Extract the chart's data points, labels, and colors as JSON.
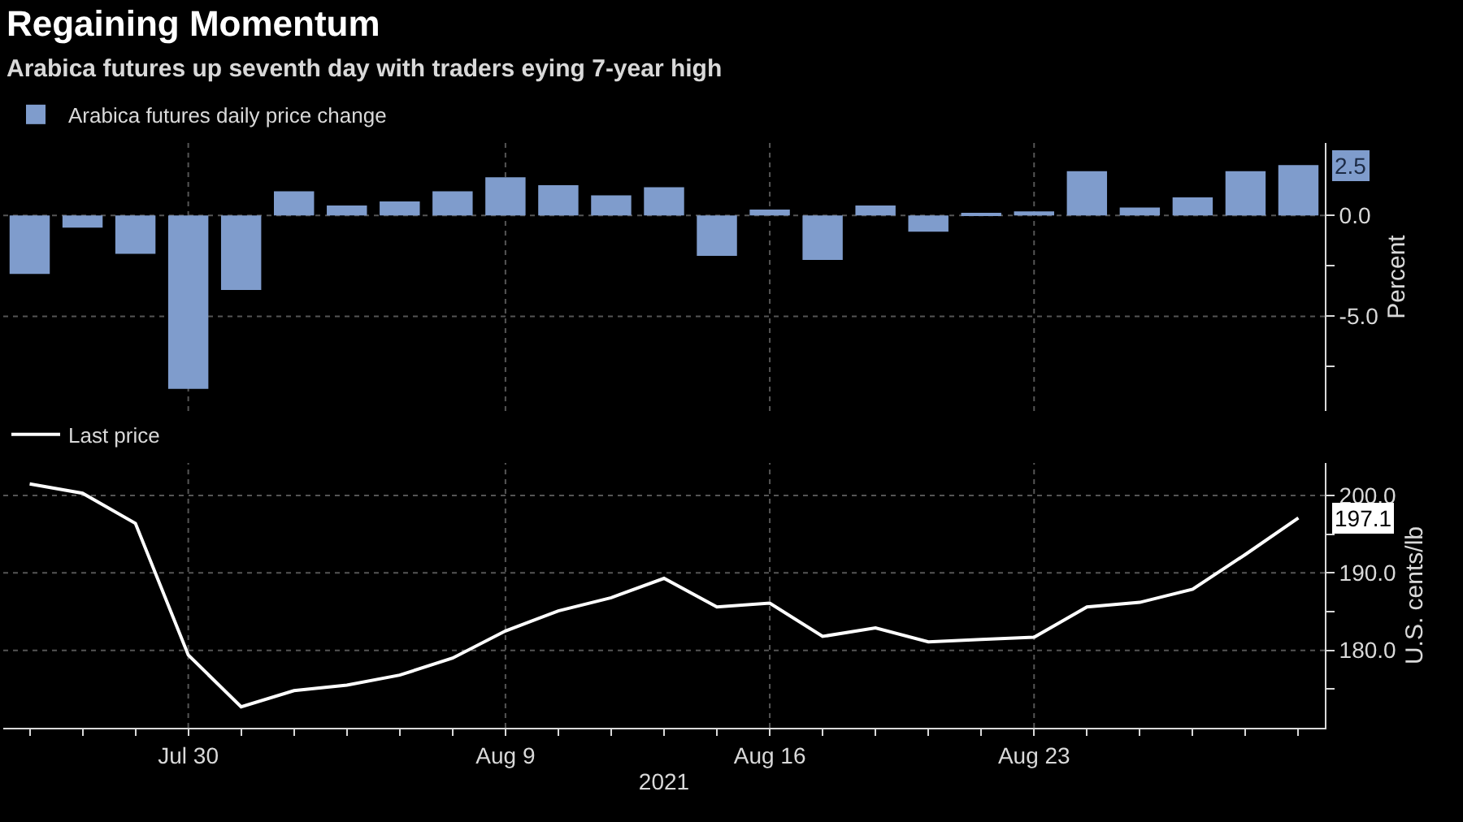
{
  "chart_data": [
    {
      "type": "bar",
      "title": "Regaining Momentum",
      "subtitle": "Arabica futures up seventh day with traders eying 7-year high",
      "ylabel": "Percent",
      "categories": [
        null,
        null,
        null,
        null,
        null,
        null,
        null,
        null,
        null,
        null,
        null,
        null,
        null,
        null,
        null,
        null,
        null,
        null,
        null,
        null,
        null,
        null,
        null,
        null,
        null
      ],
      "series": [
        {
          "name": "Arabica futures daily price change",
          "color": "#7f9ccc",
          "values": [
            -2.9,
            -0.6,
            -1.9,
            -8.6,
            -3.7,
            1.2,
            0.5,
            0.7,
            1.2,
            1.9,
            1.5,
            1.0,
            1.4,
            -2.0,
            0.3,
            -2.2,
            0.5,
            -0.8,
            0.1,
            0.2,
            2.2,
            0.4,
            0.9,
            2.2,
            2.5
          ]
        }
      ],
      "ylim": [
        -9.7,
        3.6
      ],
      "yticks": [
        {
          "value": 0,
          "label": "0.0"
        },
        {
          "value": -2.5,
          "label": null
        },
        {
          "value": -5,
          "label": "-5.0"
        },
        {
          "value": -7.5,
          "label": null
        }
      ],
      "annotations": [
        "2.5"
      ],
      "grid": true,
      "legend": "top left",
      "tick_labels": "y"
    },
    {
      "type": "line",
      "xlabel": "2021",
      "ylabel": "U.S. cents/lb",
      "categories": [
        null,
        null,
        null,
        "Jul 30",
        null,
        null,
        null,
        null,
        null,
        "Aug 9",
        null,
        null,
        null,
        null,
        "Aug 16",
        null,
        null,
        null,
        null,
        "Aug 23",
        null,
        null,
        null,
        null,
        null
      ],
      "series": [
        {
          "name": "Last price",
          "color": "#ffffff",
          "values": [
            201.5,
            200.3,
            196.4,
            179.4,
            172.7,
            174.8,
            175.5,
            176.8,
            179.0,
            182.5,
            185.1,
            186.8,
            189.3,
            185.6,
            186.1,
            181.8,
            182.9,
            181.1,
            181.4,
            181.7,
            185.6,
            186.2,
            187.9,
            192.4,
            197.1
          ]
        }
      ],
      "ylim": [
        170,
        204.2
      ],
      "yticks": [
        {
          "value": 175,
          "label": null
        },
        {
          "value": 180,
          "label": "180.0"
        },
        {
          "value": 185,
          "label": null
        },
        {
          "value": 190,
          "label": "190.0"
        },
        {
          "value": 195,
          "label": null
        },
        {
          "value": 200,
          "label": "200.0"
        }
      ],
      "annotations": [
        "197.1"
      ],
      "grid": true,
      "legend": "top left",
      "marker": "none",
      "line_style": "solid"
    }
  ]
}
